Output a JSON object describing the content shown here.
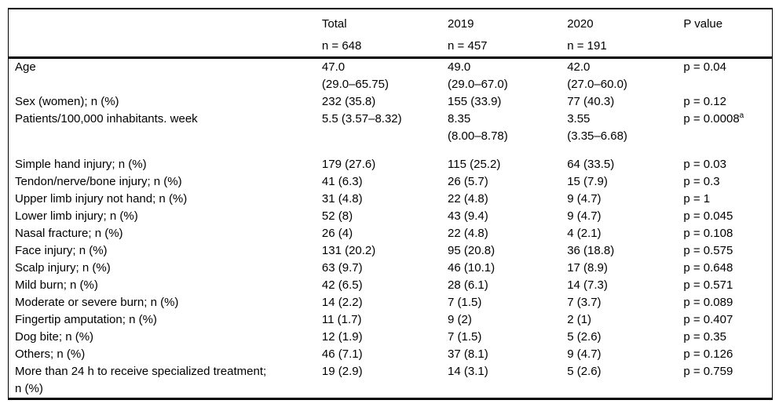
{
  "table": {
    "columns": [
      "",
      "Total",
      "2019",
      "2020",
      "P value"
    ],
    "subheaders": [
      "",
      "n = 648",
      "n = 457",
      "n = 191",
      ""
    ],
    "rows": [
      {
        "label": "Age",
        "total": "47.0\n(29.0–65.75)",
        "y2019": "49.0\n(29.0–67.0)",
        "y2020": "42.0\n(27.0–60.0)",
        "p": "p = 0.04"
      },
      {
        "label": "Sex (women); n (%)",
        "total": "232 (35.8)",
        "y2019": "155 (33.9)",
        "y2020": "77 (40.3)",
        "p": "p = 0.12"
      },
      {
        "label": "Patients/100,000 inhabitants. week",
        "total": "5.5 (3.57–8.32)",
        "y2019": "8.35\n(8.00–8.78)",
        "y2020": "3.55\n(3.35–6.68)",
        "p": "p = 0.0008",
        "p_sup": "a"
      },
      {
        "spacer": true
      },
      {
        "label": "Simple hand injury; n (%)",
        "total": "179 (27.6)",
        "y2019": "115 (25.2)",
        "y2020": "64 (33.5)",
        "p": "p = 0.03"
      },
      {
        "label": "Tendon/nerve/bone injury; n (%)",
        "total": "41 (6.3)",
        "y2019": "26 (5.7)",
        "y2020": "15 (7.9)",
        "p": "p = 0.3"
      },
      {
        "label": "Upper limb injury not hand; n (%)",
        "total": "31 (4.8)",
        "y2019": "22 (4.8)",
        "y2020": "9 (4.7)",
        "p": "p = 1"
      },
      {
        "label": "Lower limb injury; n (%)",
        "total": "52 (8)",
        "y2019": "43 (9.4)",
        "y2020": "9 (4.7)",
        "p": "p = 0.045"
      },
      {
        "label": "Nasal fracture; n (%)",
        "total": "26 (4)",
        "y2019": "22 (4.8)",
        "y2020": "4 (2.1)",
        "p": "p = 0.108"
      },
      {
        "label": "Face injury; n (%)",
        "total": "131 (20.2)",
        "y2019": "95 (20.8)",
        "y2020": "36 (18.8)",
        "p": "p = 0.575"
      },
      {
        "label": "Scalp injury; n (%)",
        "total": "63 (9.7)",
        "y2019": "46 (10.1)",
        "y2020": "17 (8.9)",
        "p": "p = 0.648"
      },
      {
        "label": "Mild burn; n (%)",
        "total": "42 (6.5)",
        "y2019": "28 (6.1)",
        "y2020": "14 (7.3)",
        "p": "p = 0.571"
      },
      {
        "label": "Moderate or severe burn; n (%)",
        "total": "14 (2.2)",
        "y2019": "7 (1.5)",
        "y2020": "7 (3.7)",
        "p": "p = 0.089"
      },
      {
        "label": "Fingertip amputation; n (%)",
        "total": "11 (1.7)",
        "y2019": "9 (2)",
        "y2020": "2 (1)",
        "p": "p = 0.407"
      },
      {
        "label": "Dog bite; n (%)",
        "total": "12 (1.9)",
        "y2019": "7 (1.5)",
        "y2020": "5 (2.6)",
        "p": "p = 0.35"
      },
      {
        "label": "Others; n (%)",
        "total": "46 (7.1)",
        "y2019": "37 (8.1)",
        "y2020": "9 (4.7)",
        "p": "p = 0.126"
      },
      {
        "label": "More than 24 h to receive specialized treatment;\nn (%)",
        "total": "19 (2.9)",
        "y2019": "14 (3.1)",
        "y2020": "5 (2.6)",
        "p": "p = 0.759"
      }
    ]
  }
}
